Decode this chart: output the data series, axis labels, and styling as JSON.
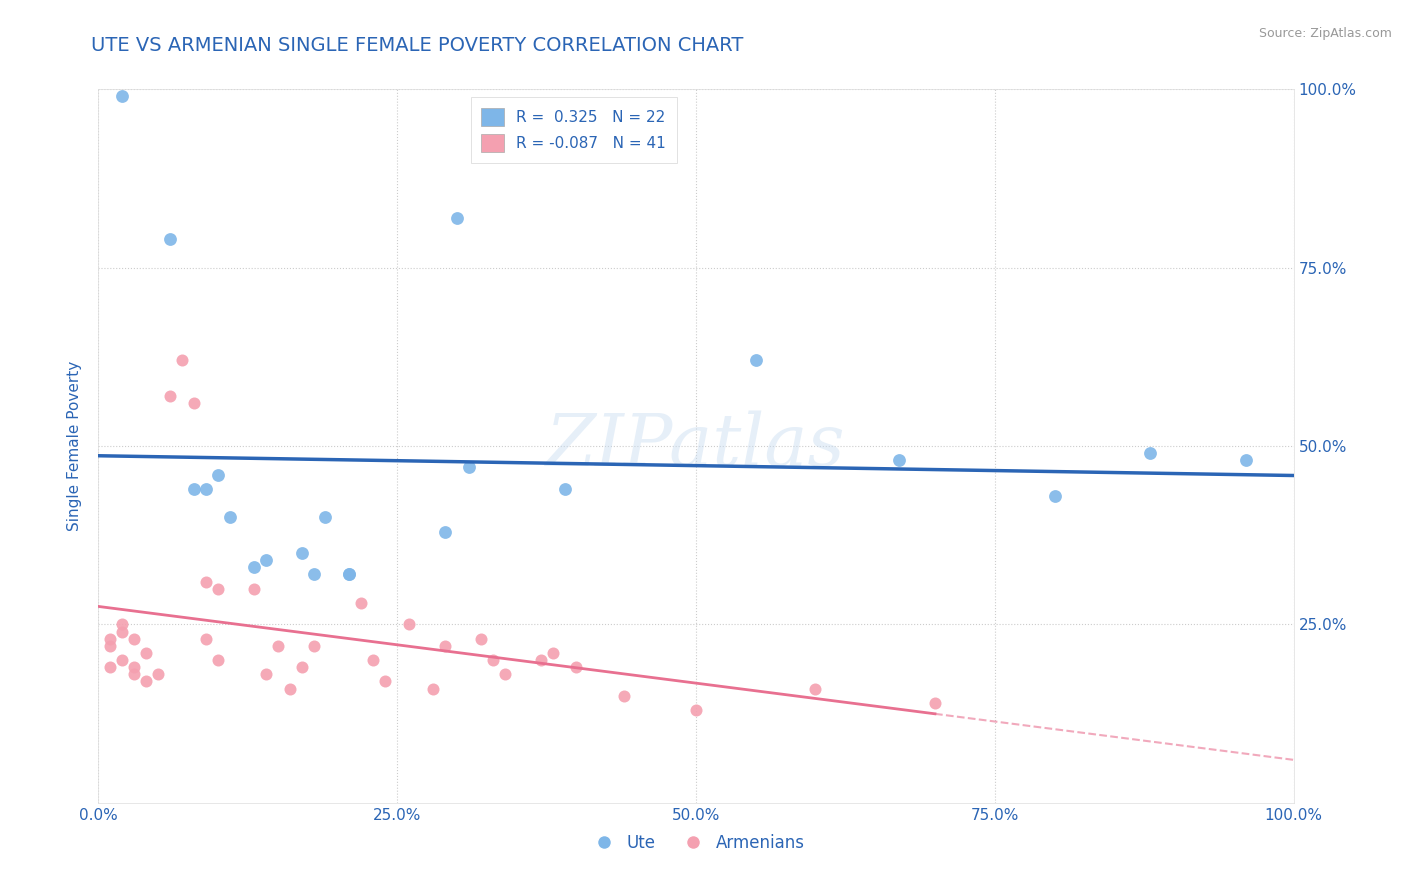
{
  "title": "UTE VS ARMENIAN SINGLE FEMALE POVERTY CORRELATION CHART",
  "source": "Source: ZipAtlas.com",
  "ylabel": "Single Female Poverty",
  "xlabel": "",
  "watermark": "ZIPatlas",
  "ute_r": 0.325,
  "ute_n": 22,
  "armenian_r": -0.087,
  "armenian_n": 41,
  "ute_color": "#7EB6E8",
  "armenian_color": "#F4A0B0",
  "ute_line_color": "#2B65B5",
  "armenian_line_color": "#E87090",
  "background_color": "#FFFFFF",
  "grid_color": "#CCCCCC",
  "title_color": "#2B65B5",
  "axis_label_color": "#2B65B5",
  "tick_label_color": "#2B65B5",
  "ute_x": [
    0.02,
    0.06,
    0.08,
    0.09,
    0.1,
    0.11,
    0.13,
    0.14,
    0.17,
    0.18,
    0.19,
    0.21,
    0.21,
    0.29,
    0.3,
    0.31,
    0.39,
    0.55,
    0.67,
    0.8,
    0.88,
    0.96
  ],
  "ute_y": [
    0.99,
    0.79,
    0.44,
    0.44,
    0.46,
    0.4,
    0.33,
    0.34,
    0.35,
    0.32,
    0.4,
    0.32,
    0.32,
    0.38,
    0.82,
    0.47,
    0.44,
    0.62,
    0.48,
    0.43,
    0.49,
    0.48
  ],
  "armenian_x": [
    0.01,
    0.01,
    0.01,
    0.02,
    0.02,
    0.02,
    0.03,
    0.03,
    0.03,
    0.04,
    0.04,
    0.05,
    0.06,
    0.07,
    0.08,
    0.09,
    0.09,
    0.1,
    0.1,
    0.13,
    0.14,
    0.15,
    0.16,
    0.17,
    0.18,
    0.22,
    0.23,
    0.24,
    0.26,
    0.28,
    0.29,
    0.32,
    0.33,
    0.34,
    0.37,
    0.38,
    0.4,
    0.44,
    0.5,
    0.6,
    0.7
  ],
  "armenian_y": [
    0.22,
    0.23,
    0.19,
    0.24,
    0.25,
    0.2,
    0.23,
    0.19,
    0.18,
    0.21,
    0.17,
    0.18,
    0.57,
    0.62,
    0.56,
    0.23,
    0.31,
    0.3,
    0.2,
    0.3,
    0.18,
    0.22,
    0.16,
    0.19,
    0.22,
    0.28,
    0.2,
    0.17,
    0.25,
    0.16,
    0.22,
    0.23,
    0.2,
    0.18,
    0.2,
    0.21,
    0.19,
    0.15,
    0.13,
    0.16,
    0.14
  ],
  "xlim": [
    0.0,
    1.0
  ],
  "ylim": [
    0.0,
    1.0
  ],
  "x_ticks": [
    0.0,
    0.25,
    0.5,
    0.75,
    1.0
  ],
  "x_tick_labels": [
    "0.0%",
    "25.0%",
    "50.0%",
    "75.0%",
    "100.0%"
  ],
  "y_ticks": [
    0.25,
    0.5,
    0.75,
    1.0
  ],
  "y_tick_labels": [
    "25.0%",
    "50.0%",
    "75.0%",
    "100.0%"
  ]
}
